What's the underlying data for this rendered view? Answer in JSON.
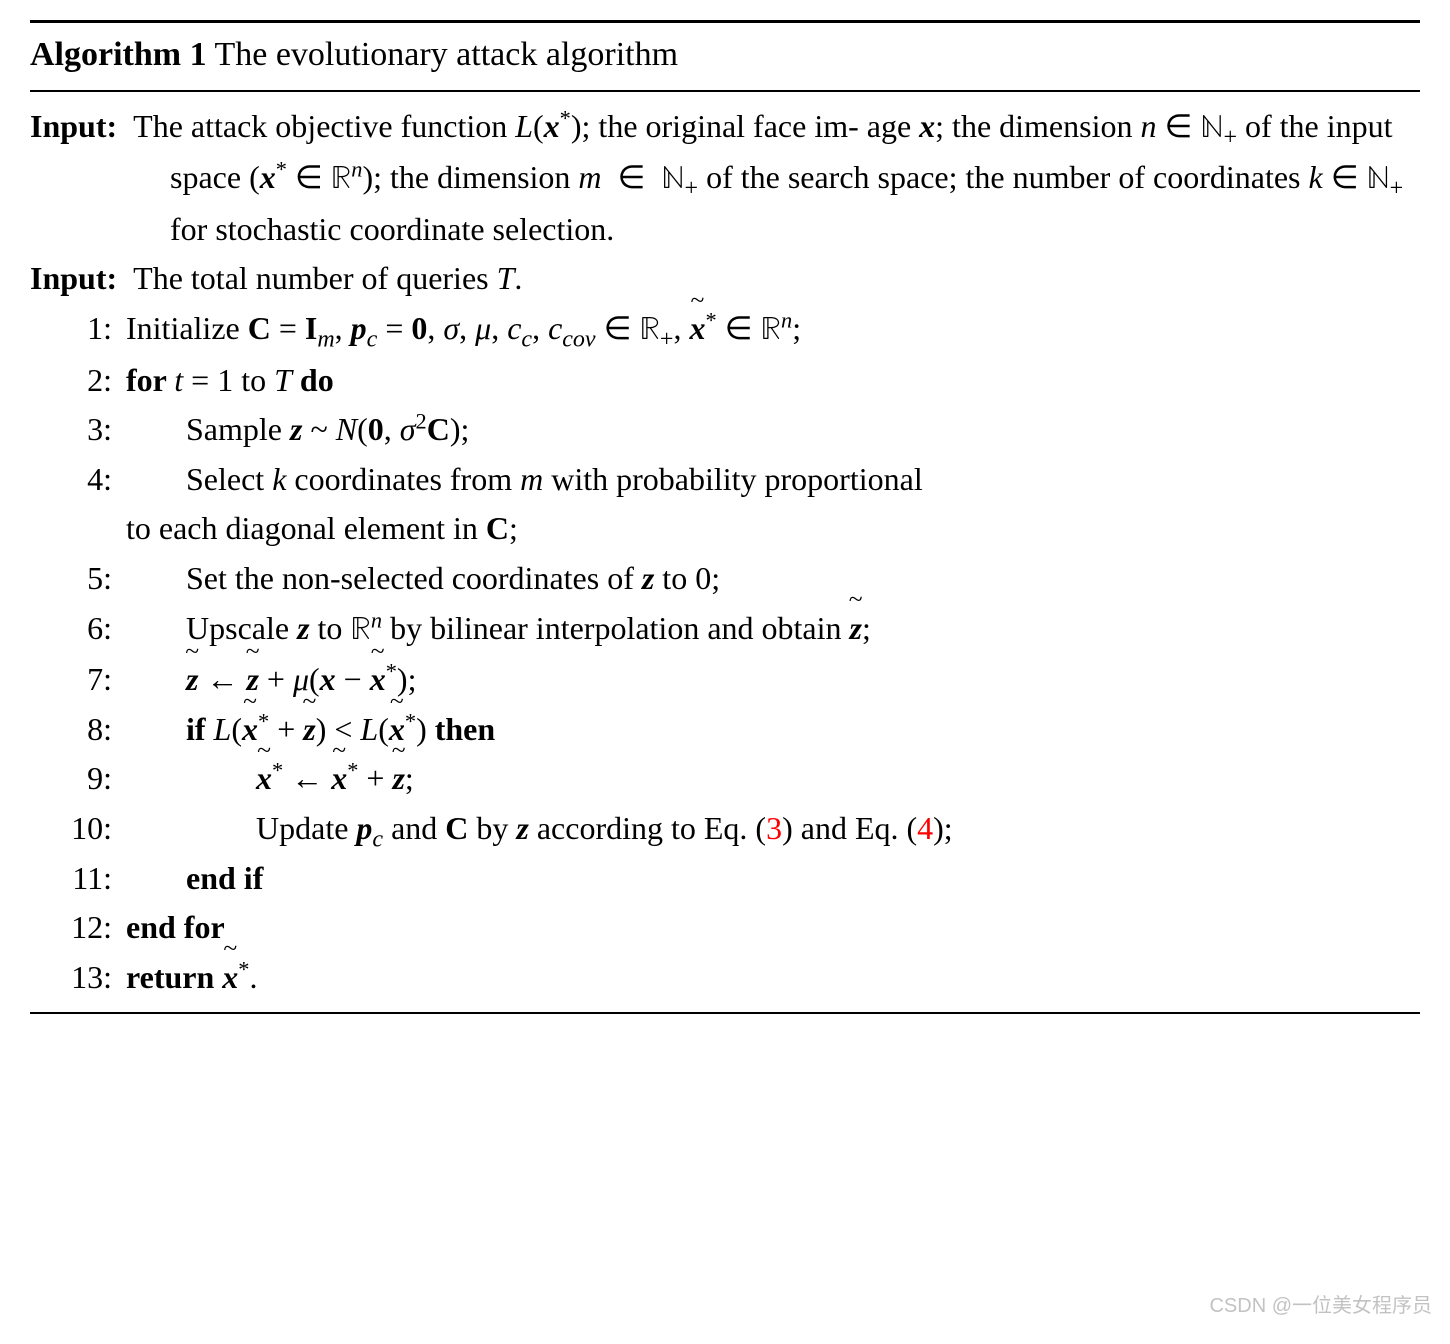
{
  "title": {
    "label": "Algorithm 1",
    "caption": "The evolutionary attack algorithm"
  },
  "inputs": {
    "label": "Input:",
    "line1_a": "The attack objective function ",
    "line1_b": "; the original face im-",
    "line2_a": "age ",
    "line2_b": "; the dimension ",
    "line2_c": " of the input space (",
    "line2_d": ");",
    "line3_a": "the dimension ",
    "line3_b": " of the search space; the number of",
    "line4_a": "coordinates ",
    "line4_b": " for stochastic coordinate selection.",
    "second": "The total number of queries "
  },
  "steps": {
    "s1": {
      "n": "1:",
      "a": "Initialize "
    },
    "s2": {
      "n": "2:",
      "a": "for ",
      "b": " to ",
      "c": " do"
    },
    "s3": {
      "n": "3:",
      "a": "Sample "
    },
    "s4a": {
      "n": "4:",
      "a": "Select ",
      "b": " coordinates from ",
      "c": " with probability proportional"
    },
    "s4b": {
      "a": "to each diagonal element in "
    },
    "s5": {
      "n": "5:",
      "a": "Set the non-selected coordinates of ",
      "b": " to "
    },
    "s6": {
      "n": "6:",
      "a": "Upscale ",
      "b": " to ",
      "c": " by bilinear interpolation and obtain "
    },
    "s7": {
      "n": "7:"
    },
    "s8": {
      "n": "8:",
      "a": "if ",
      "b": " then"
    },
    "s9": {
      "n": "9:"
    },
    "s10": {
      "n": "10:",
      "a": "Update ",
      "b": " and ",
      "c": " by ",
      "d": " according to Eq. (",
      "e": ") and Eq. (",
      "f": ");"
    },
    "s11": {
      "n": "11:",
      "a": "end if"
    },
    "s12": {
      "n": "12:",
      "a": "end for"
    },
    "s13": {
      "n": "13:",
      "a": "return "
    }
  },
  "sym": {
    "L": "L",
    "x": "x",
    "xstar": "*",
    "n": "n",
    "Nplus": "ℕ",
    "plus": "+",
    "Rn": "ℝ",
    "m": "m",
    "k": "k",
    "T": "T",
    "C": "C",
    "I": "I",
    "pc": "p",
    "zero": "0",
    "sigma": "σ",
    "mu": "μ",
    "cc": "c",
    "ccov": "cov",
    "z": "z",
    "Ncal": "N",
    "in": "∈",
    "leftarrow": "←",
    "lt": "<",
    "semicolon": ";",
    "period": ".",
    "comma": ",",
    "open": "(",
    "close": ")",
    "eq3": "3",
    "eq4": "4",
    "zero_num": "0",
    "two": "2",
    "t": "t",
    "one": "1",
    "tilde": "~"
  },
  "watermark": "CSDN @一位美女程序员"
}
